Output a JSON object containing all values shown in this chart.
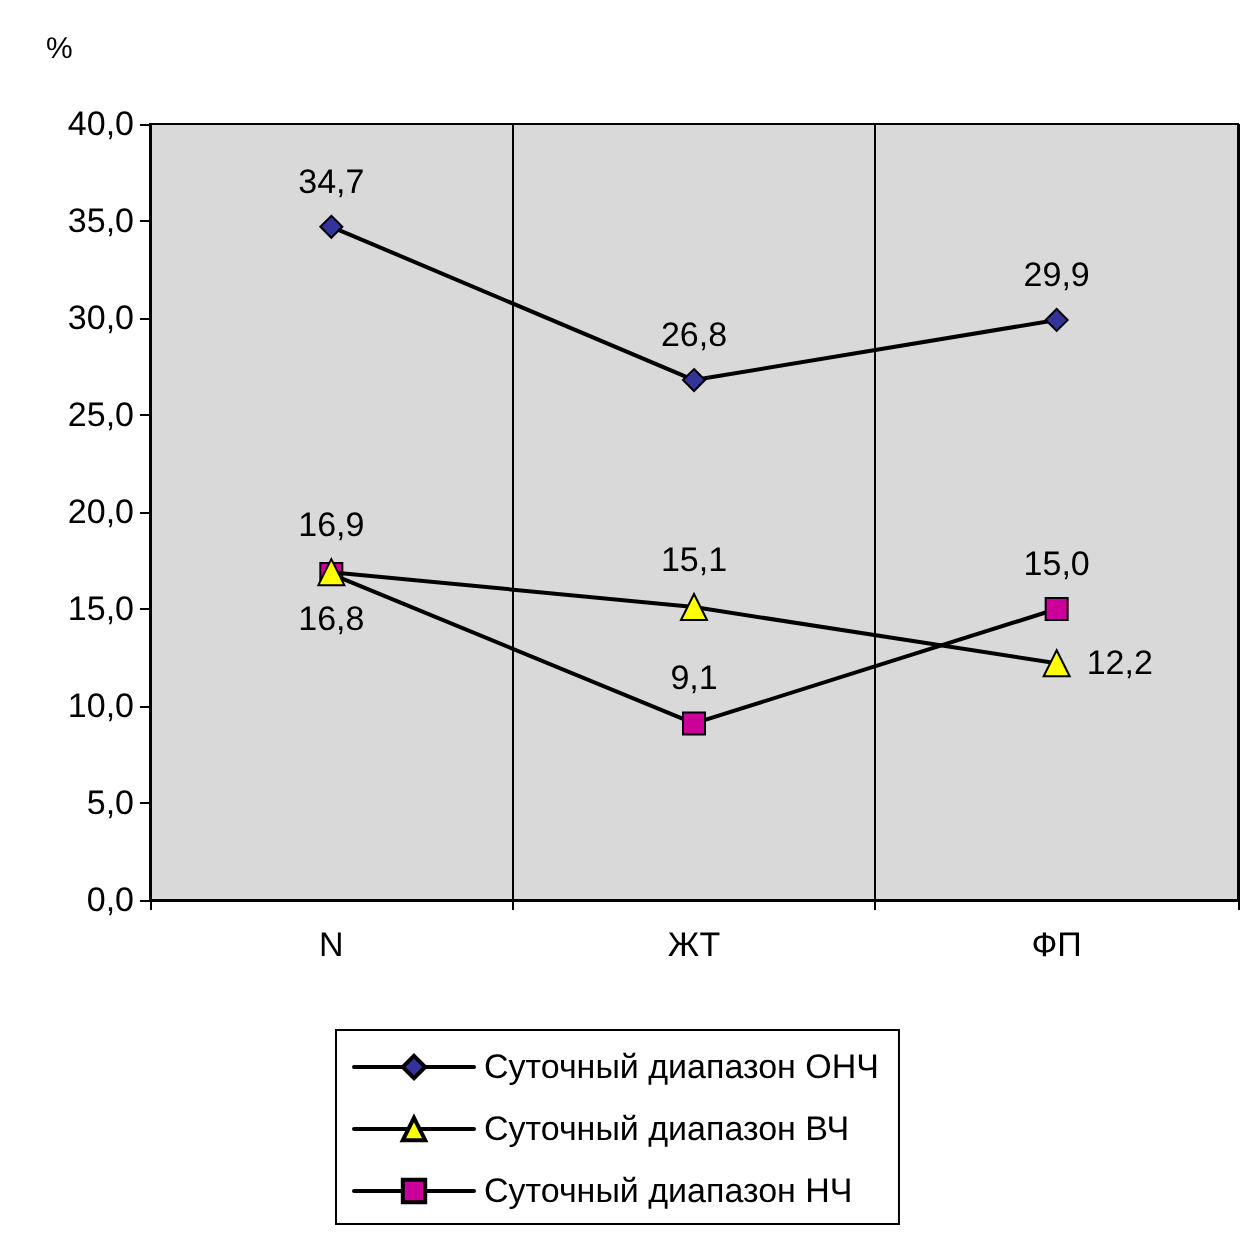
{
  "chart_data": {
    "type": "line",
    "ylabel": "%",
    "categories": [
      "N",
      "ЖТ",
      "ФП"
    ],
    "series": [
      {
        "name": "Суточный диапазон ОНЧ",
        "color": "#333399",
        "values": [
          34.7,
          26.8,
          29.9
        ],
        "value_labels": [
          "34,7",
          "26,8",
          "29,9"
        ],
        "marker": "diamond"
      },
      {
        "name": "Суточный диапазон ВЧ",
        "color": "#ffff00",
        "values": [
          16.9,
          15.1,
          12.2
        ],
        "value_labels": [
          "16,9",
          "15,1",
          "12,2"
        ],
        "marker": "triangle"
      },
      {
        "name": "Суточный диапазон НЧ",
        "color": "#cc0099",
        "values": [
          16.8,
          9.1,
          15.0
        ],
        "value_labels": [
          "16,8",
          "9,1",
          "15,0"
        ],
        "marker": "square"
      }
    ],
    "ylim": [
      0,
      40
    ],
    "yticks": [
      {
        "value": 0,
        "label": "0,0"
      },
      {
        "value": 5,
        "label": "5,0"
      },
      {
        "value": 10,
        "label": "10,0"
      },
      {
        "value": 15,
        "label": "15,0"
      },
      {
        "value": 20,
        "label": "20,0"
      },
      {
        "value": 25,
        "label": "25,0"
      },
      {
        "value": 30,
        "label": "30,0"
      },
      {
        "value": 35,
        "label": "35,0"
      },
      {
        "value": 40,
        "label": "40,0"
      }
    ],
    "grid": "x",
    "legend": "bottom",
    "line_style": "solid"
  }
}
